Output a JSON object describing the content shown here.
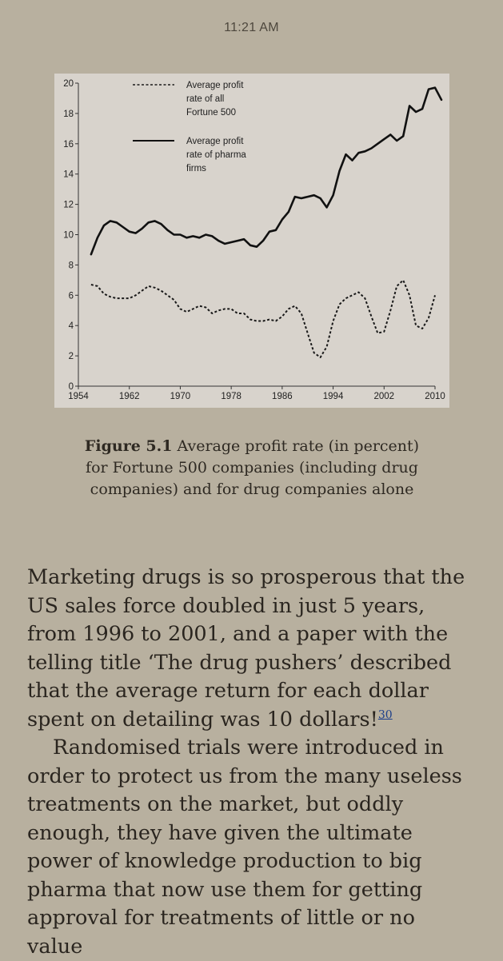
{
  "status_bar": {
    "time": "11:21 AM"
  },
  "figure": {
    "caption_label": "Figure 5.1",
    "caption_text": " Average profit rate (in percent) for Fortune 500 companies (including drug companies) and for drug companies alone"
  },
  "chart_data": {
    "type": "line",
    "title": "",
    "xlabel": "",
    "ylabel": "",
    "xlim": [
      1954,
      2010
    ],
    "ylim": [
      0,
      20
    ],
    "xticks": [
      1954,
      1962,
      1970,
      1978,
      1986,
      1994,
      2002,
      2010
    ],
    "yticks": [
      0,
      2,
      4,
      6,
      8,
      10,
      12,
      14,
      16,
      18,
      20
    ],
    "grid": false,
    "legend_position": "top-left",
    "series": [
      {
        "name": "Average profit rate of all Fortune 500",
        "style": "dashed",
        "color": "#1a1a1a",
        "points": [
          [
            1956,
            6.7
          ],
          [
            1957,
            6.6
          ],
          [
            1958,
            6.1
          ],
          [
            1959,
            5.9
          ],
          [
            1960,
            5.8
          ],
          [
            1961,
            5.8
          ],
          [
            1962,
            5.8
          ],
          [
            1963,
            6.0
          ],
          [
            1964,
            6.3
          ],
          [
            1965,
            6.6
          ],
          [
            1966,
            6.5
          ],
          [
            1967,
            6.3
          ],
          [
            1968,
            6.0
          ],
          [
            1969,
            5.7
          ],
          [
            1970,
            5.1
          ],
          [
            1971,
            4.9
          ],
          [
            1972,
            5.1
          ],
          [
            1973,
            5.3
          ],
          [
            1974,
            5.2
          ],
          [
            1975,
            4.8
          ],
          [
            1976,
            5.0
          ],
          [
            1977,
            5.1
          ],
          [
            1978,
            5.1
          ],
          [
            1979,
            4.8
          ],
          [
            1980,
            4.8
          ],
          [
            1981,
            4.4
          ],
          [
            1982,
            4.3
          ],
          [
            1983,
            4.3
          ],
          [
            1984,
            4.4
          ],
          [
            1985,
            4.3
          ],
          [
            1986,
            4.6
          ],
          [
            1987,
            5.1
          ],
          [
            1988,
            5.3
          ],
          [
            1989,
            4.8
          ],
          [
            1990,
            3.5
          ],
          [
            1991,
            2.2
          ],
          [
            1992,
            1.9
          ],
          [
            1993,
            2.6
          ],
          [
            1994,
            4.3
          ],
          [
            1995,
            5.4
          ],
          [
            1996,
            5.8
          ],
          [
            1997,
            6.0
          ],
          [
            1998,
            6.2
          ],
          [
            1999,
            5.8
          ],
          [
            2000,
            4.6
          ],
          [
            2001,
            3.5
          ],
          [
            2002,
            3.6
          ],
          [
            2003,
            5.0
          ],
          [
            2004,
            6.6
          ],
          [
            2005,
            7.0
          ],
          [
            2006,
            6.0
          ],
          [
            2007,
            4.0
          ],
          [
            2008,
            3.8
          ],
          [
            2009,
            4.5
          ],
          [
            2010,
            6.0
          ]
        ]
      },
      {
        "name": "Average profit rate of pharma firms",
        "style": "solid",
        "color": "#111111",
        "points": [
          [
            1956,
            8.7
          ],
          [
            1957,
            9.8
          ],
          [
            1958,
            10.6
          ],
          [
            1959,
            10.9
          ],
          [
            1960,
            10.8
          ],
          [
            1961,
            10.5
          ],
          [
            1962,
            10.2
          ],
          [
            1963,
            10.1
          ],
          [
            1964,
            10.4
          ],
          [
            1965,
            10.8
          ],
          [
            1966,
            10.9
          ],
          [
            1967,
            10.7
          ],
          [
            1968,
            10.3
          ],
          [
            1969,
            10.0
          ],
          [
            1970,
            10.0
          ],
          [
            1971,
            9.8
          ],
          [
            1972,
            9.9
          ],
          [
            1973,
            9.8
          ],
          [
            1974,
            10.0
          ],
          [
            1975,
            9.9
          ],
          [
            1976,
            9.6
          ],
          [
            1977,
            9.4
          ],
          [
            1978,
            9.5
          ],
          [
            1979,
            9.6
          ],
          [
            1980,
            9.7
          ],
          [
            1981,
            9.3
          ],
          [
            1982,
            9.2
          ],
          [
            1983,
            9.6
          ],
          [
            1984,
            10.2
          ],
          [
            1985,
            10.3
          ],
          [
            1986,
            11.0
          ],
          [
            1987,
            11.5
          ],
          [
            1988,
            12.5
          ],
          [
            1989,
            12.4
          ],
          [
            1990,
            12.5
          ],
          [
            1991,
            12.6
          ],
          [
            1992,
            12.4
          ],
          [
            1993,
            11.8
          ],
          [
            1994,
            12.6
          ],
          [
            1995,
            14.2
          ],
          [
            1996,
            15.3
          ],
          [
            1997,
            14.9
          ],
          [
            1998,
            15.4
          ],
          [
            1999,
            15.5
          ],
          [
            2000,
            15.7
          ],
          [
            2001,
            16.0
          ],
          [
            2002,
            16.3
          ],
          [
            2003,
            16.6
          ],
          [
            2004,
            16.2
          ],
          [
            2005,
            16.5
          ],
          [
            2006,
            18.5
          ],
          [
            2007,
            18.1
          ],
          [
            2008,
            18.3
          ],
          [
            2009,
            19.6
          ],
          [
            2010,
            19.7
          ],
          [
            2011,
            18.9
          ]
        ]
      }
    ]
  },
  "body": {
    "p1": "Marketing drugs is so prosperous that the US sales force doubled in just 5 years, from 1996 to 2001, and a paper with the telling title ‘The drug pushers’ described that the average return for each dollar spent on detailing was 10 dollars!",
    "p1_footnote": "30",
    "p2": "Randomised trials were introduced in order to protect us from the many useless treatments on the market, but oddly enough, they have given the ultimate power of knowledge production to big pharma that now use them for getting approval for treatments of little or no value"
  }
}
